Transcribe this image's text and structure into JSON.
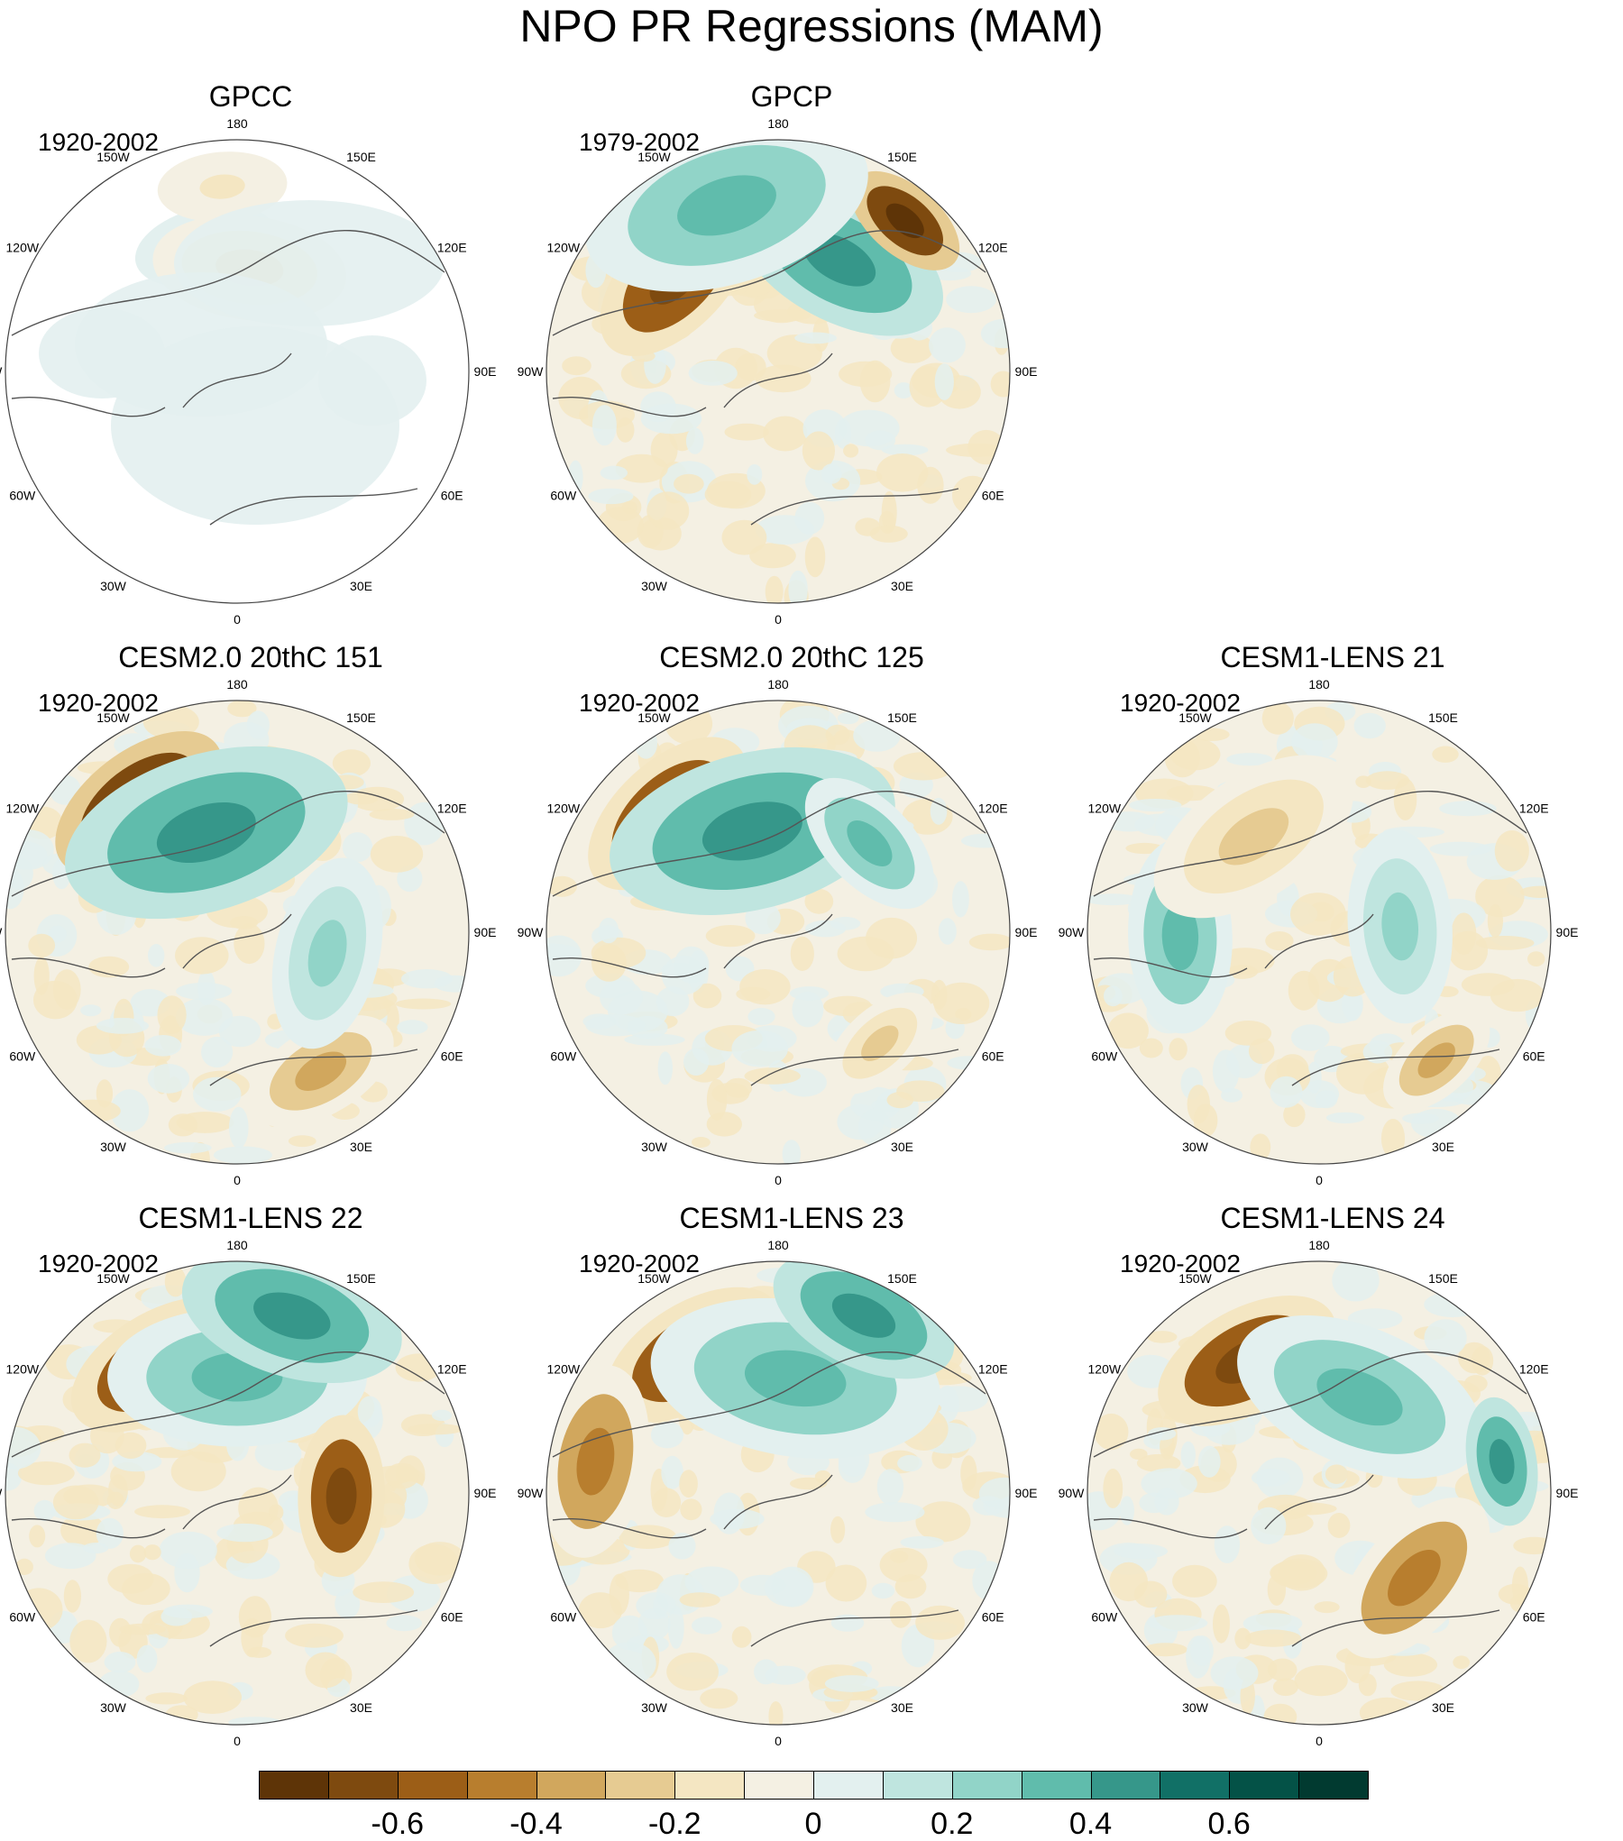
{
  "title": "NPO PR Regressions (MAM)",
  "longitude_labels": [
    "180",
    "150E",
    "120E",
    "90E",
    "60E",
    "30E",
    "0",
    "30W",
    "60W",
    "90W",
    "120W",
    "150W"
  ],
  "panels": [
    {
      "title": "GPCC",
      "period": "1920-2002",
      "land_only": true
    },
    {
      "title": "GPCP",
      "period": "1979-2002",
      "land_only": false
    },
    {
      "title": "CESM2.0 20thC 151",
      "period": "1920-2002",
      "land_only": false
    },
    {
      "title": "CESM2.0 20thC 125",
      "period": "1920-2002",
      "land_only": false
    },
    {
      "title": "CESM1-LENS 21",
      "period": "1920-2002",
      "land_only": false
    },
    {
      "title": "CESM1-LENS 22",
      "period": "1920-2002",
      "land_only": false
    },
    {
      "title": "CESM1-LENS 23",
      "period": "1920-2002",
      "land_only": false
    },
    {
      "title": "CESM1-LENS 24",
      "period": "1920-2002",
      "land_only": false
    }
  ],
  "colorbar": {
    "colors": [
      "#5e3407",
      "#7e4a0f",
      "#9c5e17",
      "#b87e2e",
      "#d1a75d",
      "#e6cb92",
      "#f4e6c2",
      "#f4f0e3",
      "#e3f0ef",
      "#bfe5df",
      "#91d4c8",
      "#60bcac",
      "#36978a",
      "#117066",
      "#045247",
      "#013a30"
    ],
    "tick_labels": [
      "-0.6",
      "-0.4",
      "-0.2",
      "0",
      "0.2",
      "0.4",
      "0.6"
    ],
    "tick_values": [
      -0.6,
      -0.4,
      -0.2,
      0,
      0.2,
      0.4,
      0.6
    ]
  }
}
